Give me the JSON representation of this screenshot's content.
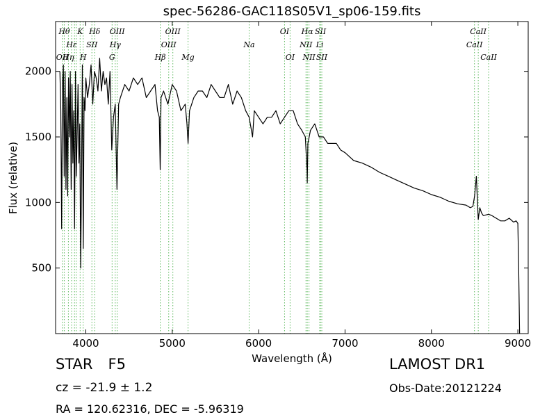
{
  "chart_data": {
    "type": "line",
    "title": "spec-56286-GAC118S05V1_sp06-159.fits",
    "xlabel": "Wavelength (Å)",
    "ylabel": "Flux (relative)",
    "xlim": [
      3650,
      9120
    ],
    "ylim": [
      0,
      2380
    ],
    "xticks": [
      4000,
      5000,
      6000,
      7000,
      8000,
      9000
    ],
    "yticks": [
      500,
      1000,
      1500,
      2000
    ],
    "grid": false,
    "line_color": "#000000",
    "marker_color": "#5cb85c",
    "series": [
      {
        "x": [
          3700,
          3710,
          3720,
          3730,
          3740,
          3750,
          3760,
          3770,
          3780,
          3790,
          3800,
          3810,
          3820,
          3830,
          3840,
          3850,
          3860,
          3870,
          3880,
          3890,
          3900,
          3910,
          3920,
          3930,
          3940,
          3950,
          3960,
          3970,
          3980,
          3990,
          4000,
          4020,
          4040,
          4060,
          4080,
          4100,
          4120,
          4140,
          4160,
          4180,
          4200,
          4220,
          4240,
          4260,
          4280,
          4300,
          4320,
          4340,
          4360,
          4380,
          4400,
          4450,
          4500,
          4550,
          4600,
          4650,
          4700,
          4750,
          4800,
          4830,
          4850,
          4861,
          4870,
          4900,
          4950,
          5000,
          5050,
          5100,
          5150,
          5170,
          5183,
          5200,
          5250,
          5300,
          5350,
          5400,
          5450,
          5500,
          5550,
          5600,
          5650,
          5700,
          5750,
          5800,
          5850,
          5890,
          5930,
          5950,
          6000,
          6050,
          6100,
          6150,
          6200,
          6250,
          6300,
          6350,
          6400,
          6450,
          6500,
          6540,
          6560,
          6563,
          6570,
          6600,
          6650,
          6700,
          6750,
          6800,
          6850,
          6900,
          6950,
          7000,
          7100,
          7200,
          7300,
          7400,
          7500,
          7600,
          7700,
          7800,
          7900,
          8000,
          8100,
          8200,
          8300,
          8400,
          8450,
          8480,
          8500,
          8520,
          8542,
          8560,
          8580,
          8600,
          8662,
          8700,
          8750,
          8800,
          8850,
          8900,
          8950,
          8980,
          9000,
          9010,
          9020
        ],
        "y": [
          2000,
          1700,
          800,
          1900,
          2050,
          1200,
          2000,
          1100,
          1800,
          1050,
          1950,
          1500,
          2000,
          1100,
          1900,
          1300,
          1700,
          800,
          2000,
          1200,
          1550,
          1900,
          1300,
          1600,
          500,
          1200,
          2050,
          650,
          1800,
          1700,
          1950,
          1800,
          1900,
          2050,
          1750,
          2000,
          1950,
          1850,
          2100,
          1850,
          2000,
          1900,
          1950,
          1750,
          2000,
          1400,
          1650,
          1750,
          1100,
          1750,
          1800,
          1900,
          1850,
          1950,
          1900,
          1950,
          1800,
          1850,
          1900,
          1700,
          1650,
          1250,
          1800,
          1850,
          1750,
          1900,
          1850,
          1700,
          1750,
          1600,
          1450,
          1700,
          1800,
          1850,
          1850,
          1800,
          1900,
          1850,
          1800,
          1800,
          1900,
          1750,
          1850,
          1800,
          1700,
          1650,
          1500,
          1700,
          1650,
          1600,
          1650,
          1650,
          1700,
          1600,
          1650,
          1700,
          1700,
          1600,
          1550,
          1500,
          1250,
          1150,
          1450,
          1550,
          1600,
          1500,
          1500,
          1450,
          1450,
          1450,
          1400,
          1380,
          1320,
          1300,
          1270,
          1230,
          1200,
          1170,
          1140,
          1110,
          1090,
          1060,
          1040,
          1010,
          990,
          980,
          960,
          970,
          1050,
          1200,
          870,
          960,
          920,
          900,
          910,
          900,
          880,
          860,
          860,
          880,
          850,
          860,
          840,
          500,
          0
        ]
      }
    ],
    "lines": [
      {
        "wl": 3727,
        "label": "OII",
        "row": 2
      },
      {
        "wl": 3750,
        "label": "Hθ",
        "row": 0
      },
      {
        "wl": 3798,
        "label": "Hη",
        "row": 2
      },
      {
        "wl": 3835,
        "label": "Hε",
        "row": 1
      },
      {
        "wl": 3869,
        "label": "",
        "row": -1
      },
      {
        "wl": 3889,
        "label": "",
        "row": -1
      },
      {
        "wl": 3934,
        "label": "K",
        "row": 0
      },
      {
        "wl": 3969,
        "label": "H",
        "row": 2
      },
      {
        "wl": 4070,
        "label": "SII",
        "row": 1
      },
      {
        "wl": 4102,
        "label": "Hδ",
        "row": 0
      },
      {
        "wl": 4304,
        "label": "G",
        "row": 2
      },
      {
        "wl": 4340,
        "label": "Hγ",
        "row": 1
      },
      {
        "wl": 4363,
        "label": "OIII",
        "row": 0
      },
      {
        "wl": 4861,
        "label": "Hβ",
        "row": 2
      },
      {
        "wl": 4959,
        "label": "OIII",
        "row": 1
      },
      {
        "wl": 5007,
        "label": "OIII",
        "row": 0
      },
      {
        "wl": 5183,
        "label": "Mg",
        "row": 2
      },
      {
        "wl": 5890,
        "label": "Na",
        "row": 1
      },
      {
        "wl": 6300,
        "label": "OI",
        "row": 0
      },
      {
        "wl": 6364,
        "label": "OI",
        "row": 2
      },
      {
        "wl": 6548,
        "label": "NII",
        "row": 1
      },
      {
        "wl": 6563,
        "label": "Hα",
        "row": 0
      },
      {
        "wl": 6583,
        "label": "NII",
        "row": 2
      },
      {
        "wl": 6716,
        "label": "SII",
        "row": 0
      },
      {
        "wl": 6707,
        "label": "Li",
        "row": 1
      },
      {
        "wl": 6731,
        "label": "SII",
        "row": 2
      },
      {
        "wl": 8498,
        "label": "CaII",
        "row": 1
      },
      {
        "wl": 8542,
        "label": "CaII",
        "row": 0
      },
      {
        "wl": 8662,
        "label": "CaII",
        "row": 2
      }
    ]
  },
  "info": {
    "object_class": "STAR",
    "subclass": "F5",
    "cz": "cz = -21.9 ± 1.2",
    "radec": "RA = 120.62316, DEC = -5.96319",
    "survey": "LAMOST DR1",
    "obs_date": "Obs-Date:20121224"
  }
}
